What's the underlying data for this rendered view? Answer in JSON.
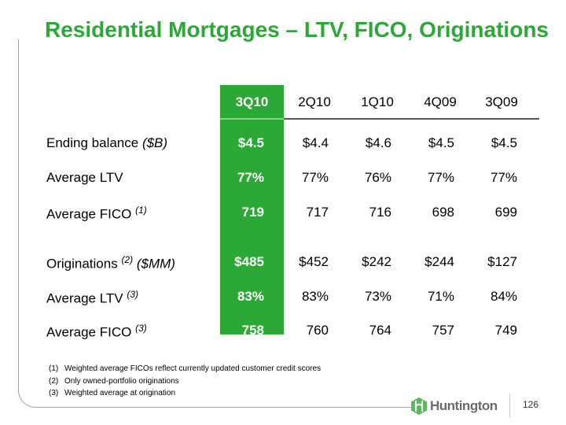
{
  "title": "Residential Mortgages – LTV, FICO, Originations",
  "columns": [
    "3Q10",
    "2Q10",
    "1Q10",
    "4Q09",
    "3Q09"
  ],
  "rows": [
    {
      "label": "Ending balance ",
      "label_em": "($B)",
      "sup": "",
      "values": [
        "$4.5",
        "$4.4",
        "$4.6",
        "$4.5",
        "$4.5"
      ]
    },
    {
      "label": "Average LTV",
      "label_em": "",
      "sup": "",
      "values": [
        "77%",
        "77%",
        "76%",
        "77%",
        "77%"
      ]
    },
    {
      "label": "Average FICO ",
      "label_em": "",
      "sup": "(1)",
      "values": [
        "719",
        "717",
        "716",
        "698",
        "699"
      ]
    },
    {
      "label": "Originations ",
      "label_em": "($MM)",
      "sup": "(2)",
      "values": [
        "$485",
        "$452",
        "$242",
        "$244",
        "$127"
      ]
    },
    {
      "label": "Average LTV ",
      "label_em": "",
      "sup": "(3)",
      "values": [
        "83%",
        "83%",
        "73%",
        "71%",
        "84%"
      ]
    },
    {
      "label": "Average FICO ",
      "label_em": "",
      "sup": "(3)",
      "values": [
        "758",
        "760",
        "764",
        "757",
        "749"
      ]
    }
  ],
  "notes": [
    {
      "num": "(1)",
      "text": "Weighted average FICOs reflect currently updated customer credit scores"
    },
    {
      "num": "(2)",
      "text": "Only owned-portfolio originations"
    },
    {
      "num": "(3)",
      "text": "Weighted average at origination"
    }
  ],
  "logo_text": "Huntington",
  "page_number": "126",
  "colors": {
    "accent": "#2ca836"
  }
}
